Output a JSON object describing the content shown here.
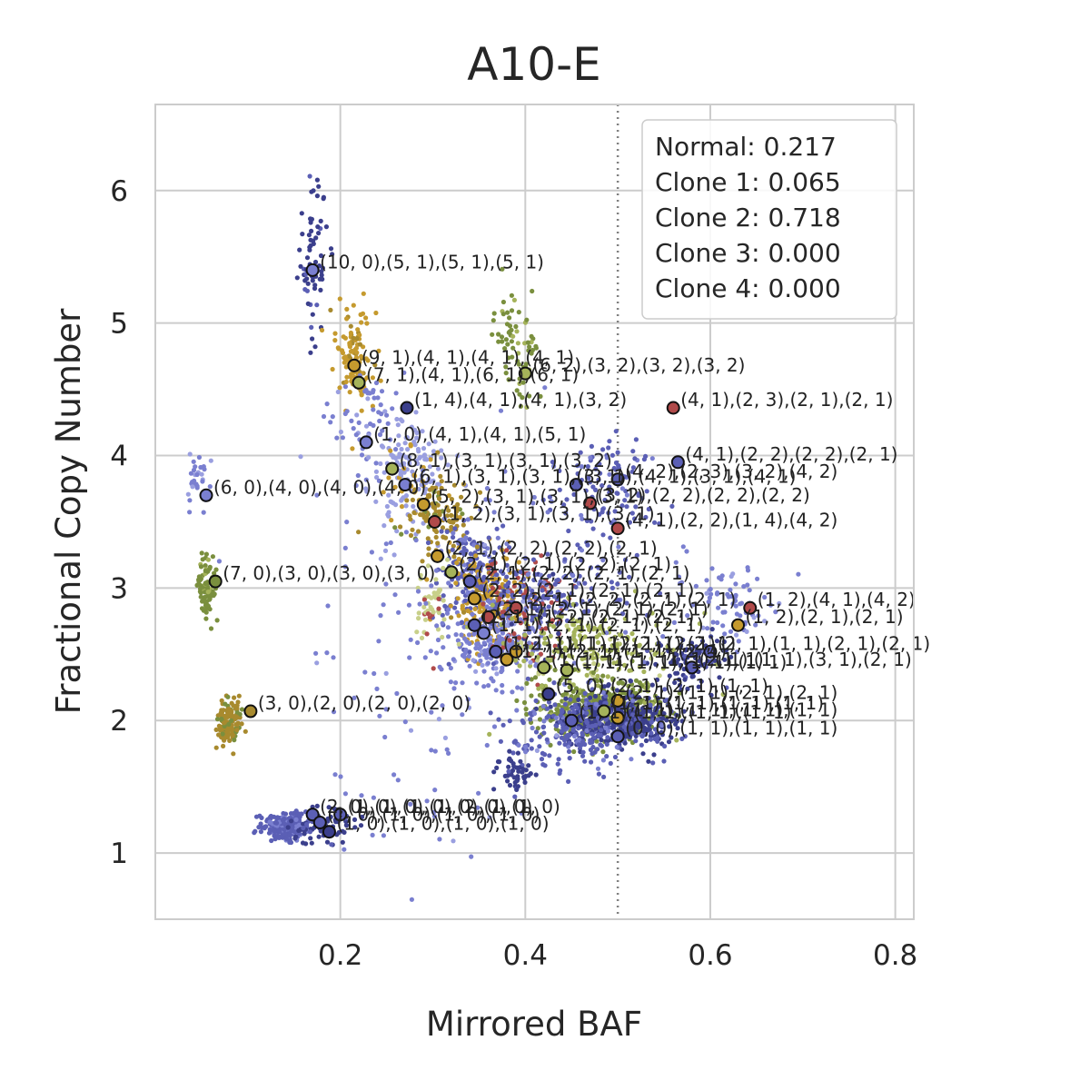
{
  "chart_data": {
    "type": "scatter",
    "title": "A10-E",
    "xlabel": "Mirrored BAF",
    "ylabel": "Fractional Copy Number",
    "xlim": [
      0.0,
      0.82
    ],
    "ylim": [
      0.5,
      6.65
    ],
    "x_ticks": [
      0.2,
      0.4,
      0.6,
      0.8
    ],
    "x_tick_labels": [
      "0.2",
      "0.4",
      "0.6",
      "0.8"
    ],
    "y_ticks": [
      1,
      2,
      3,
      4,
      5,
      6
    ],
    "y_tick_labels": [
      "1",
      "2",
      "3",
      "4",
      "5",
      "6"
    ],
    "grid": true,
    "reference_line": {
      "x": 0.5,
      "style": "dotted",
      "color": "#808080"
    },
    "legend": {
      "placement": "top-right",
      "entries": [
        "Normal: 0.217",
        "Clone 1: 0.065",
        "Clone 2: 0.718",
        "Clone 3: 0.000",
        "Clone 4: 0.000"
      ]
    },
    "palette": [
      "#3b3f8c",
      "#5b5fb5",
      "#7a7fd0",
      "#9a9fe0",
      "#c59a2e",
      "#a88a2e",
      "#7a8f3e",
      "#a5b35a",
      "#c8d08a",
      "#b04a4a"
    ],
    "clusters": [
      {
        "x": 0.17,
        "y": 5.5,
        "sx": 0.008,
        "sy": 0.3,
        "n": 70,
        "c": 0
      },
      {
        "x": 0.215,
        "y": 4.75,
        "sx": 0.01,
        "sy": 0.17,
        "n": 110,
        "c": 4
      },
      {
        "x": 0.225,
        "y": 4.3,
        "sx": 0.02,
        "sy": 0.2,
        "n": 60,
        "c": 2
      },
      {
        "x": 0.27,
        "y": 3.85,
        "sx": 0.02,
        "sy": 0.2,
        "n": 160,
        "c": 3
      },
      {
        "x": 0.3,
        "y": 3.55,
        "sx": 0.02,
        "sy": 0.15,
        "n": 120,
        "c": 5
      },
      {
        "x": 0.34,
        "y": 3.1,
        "sx": 0.02,
        "sy": 0.2,
        "n": 180,
        "c": 1
      },
      {
        "x": 0.36,
        "y": 2.9,
        "sx": 0.02,
        "sy": 0.18,
        "n": 180,
        "c": 4
      },
      {
        "x": 0.37,
        "y": 2.6,
        "sx": 0.025,
        "sy": 0.15,
        "n": 200,
        "c": 2
      },
      {
        "x": 0.4,
        "y": 2.8,
        "sx": 0.025,
        "sy": 0.2,
        "n": 120,
        "c": 9
      },
      {
        "x": 0.42,
        "y": 2.95,
        "sx": 0.04,
        "sy": 0.15,
        "n": 160,
        "c": 1
      },
      {
        "x": 0.47,
        "y": 2.55,
        "sx": 0.05,
        "sy": 0.15,
        "n": 180,
        "c": 7
      },
      {
        "x": 0.48,
        "y": 2.1,
        "sx": 0.035,
        "sy": 0.12,
        "n": 380,
        "c": 6
      },
      {
        "x": 0.5,
        "y": 2.0,
        "sx": 0.03,
        "sy": 0.1,
        "n": 400,
        "c": 0
      },
      {
        "x": 0.46,
        "y": 1.95,
        "sx": 0.04,
        "sy": 0.15,
        "n": 200,
        "c": 1
      },
      {
        "x": 0.39,
        "y": 1.6,
        "sx": 0.01,
        "sy": 0.06,
        "n": 50,
        "c": 0
      },
      {
        "x": 0.14,
        "y": 1.2,
        "sx": 0.012,
        "sy": 0.05,
        "n": 260,
        "c": 1
      },
      {
        "x": 0.18,
        "y": 1.2,
        "sx": 0.02,
        "sy": 0.06,
        "n": 80,
        "c": 0
      },
      {
        "x": 0.08,
        "y": 2.0,
        "sx": 0.006,
        "sy": 0.1,
        "n": 130,
        "c": 5
      },
      {
        "x": 0.055,
        "y": 3.0,
        "sx": 0.005,
        "sy": 0.14,
        "n": 90,
        "c": 6
      },
      {
        "x": 0.045,
        "y": 3.8,
        "sx": 0.006,
        "sy": 0.12,
        "n": 30,
        "c": 2
      },
      {
        "x": 0.39,
        "y": 4.8,
        "sx": 0.012,
        "sy": 0.2,
        "n": 70,
        "c": 6
      },
      {
        "x": 0.48,
        "y": 3.7,
        "sx": 0.03,
        "sy": 0.2,
        "n": 120,
        "c": 1
      },
      {
        "x": 0.58,
        "y": 2.45,
        "sx": 0.02,
        "sy": 0.1,
        "n": 90,
        "c": 0
      },
      {
        "x": 0.62,
        "y": 2.9,
        "sx": 0.03,
        "sy": 0.15,
        "n": 80,
        "c": 2
      },
      {
        "x": 0.3,
        "y": 2.9,
        "sx": 0.01,
        "sy": 0.15,
        "n": 50,
        "c": 8
      },
      {
        "x": 0.31,
        "y": 2.5,
        "sx": 0.08,
        "sy": 0.8,
        "n": 150,
        "c": 2
      }
    ],
    "labeled_points": [
      {
        "x": 0.17,
        "y": 5.4,
        "c": 2,
        "label": "(10, 0),(5, 1),(5, 1),(5, 1)"
      },
      {
        "x": 0.215,
        "y": 4.68,
        "c": 4,
        "label": "(9, 1),(4, 1),(4, 1),(4, 1)"
      },
      {
        "x": 0.22,
        "y": 4.55,
        "c": 7,
        "label": "(7, 1),(4, 1),(6, 1),(6, 1)"
      },
      {
        "x": 0.4,
        "y": 4.62,
        "c": 7,
        "label": "(6, 2),(3, 2),(3, 2),(3, 2)"
      },
      {
        "x": 0.272,
        "y": 4.36,
        "c": 0,
        "label": "(1, 4),(4, 1),(4, 1),(3, 2)"
      },
      {
        "x": 0.56,
        "y": 4.36,
        "c": 9,
        "label": "(4, 1),(2, 3),(2, 1),(2, 1)"
      },
      {
        "x": 0.228,
        "y": 4.1,
        "c": 2,
        "label": "(1, 0),(4, 1),(4, 1),(5, 1)"
      },
      {
        "x": 0.256,
        "y": 3.9,
        "c": 7,
        "label": "(8, 1),(3, 1),(3, 1),(3, 2)"
      },
      {
        "x": 0.565,
        "y": 3.95,
        "c": 1,
        "label": "(4, 1),(2, 2),(2, 2),(2, 1)"
      },
      {
        "x": 0.5,
        "y": 3.82,
        "c": 1,
        "label": "(4, 2),(2, 3),(3, 2),(4, 2)"
      },
      {
        "x": 0.27,
        "y": 3.78,
        "c": 2,
        "label": "(6, 1),(3, 1),(3, 1),(3, 1)"
      },
      {
        "x": 0.455,
        "y": 3.78,
        "c": 1,
        "label": "(3, 1),(4, 1),(3, 1),(4, 1)"
      },
      {
        "x": 0.055,
        "y": 3.7,
        "c": 2,
        "label": "(6, 0),(4, 0),(4, 0),(4, 0)"
      },
      {
        "x": 0.29,
        "y": 3.63,
        "c": 4,
        "label": "(5, 2),(3, 1),(3, 1),(3, 1)"
      },
      {
        "x": 0.47,
        "y": 3.64,
        "c": 9,
        "label": "(3, 2),(2, 2),(2, 2),(2, 2)"
      },
      {
        "x": 0.302,
        "y": 3.5,
        "c": 9,
        "label": "(1, 2),(3, 1),(3, 1),(3, 1)"
      },
      {
        "x": 0.5,
        "y": 3.45,
        "c": 9,
        "label": "(4, 1),(2, 2),(1, 4),(4, 2)"
      },
      {
        "x": 0.305,
        "y": 3.24,
        "c": 4,
        "label": "(2, 1),(2, 2),(2, 2),(2, 1)"
      },
      {
        "x": 0.32,
        "y": 3.12,
        "c": 7,
        "label": "(2, 1),(2, 1),(2, 2),(2, 1)"
      },
      {
        "x": 0.065,
        "y": 3.05,
        "c": 6,
        "label": "(7, 0),(3, 0),(3, 0),(3, 0)"
      },
      {
        "x": 0.34,
        "y": 3.05,
        "c": 1,
        "label": "(2, 1),(2, 2),(2, 1),(2, 1)"
      },
      {
        "x": 0.345,
        "y": 2.92,
        "c": 4,
        "label": "(2, 2),(2, 1),(2, 1),(2, 1)"
      },
      {
        "x": 0.39,
        "y": 2.85,
        "c": 9,
        "label": "(2, 1),(2, 2),(2, 1),(2, 1)"
      },
      {
        "x": 0.643,
        "y": 2.85,
        "c": 9,
        "label": "(1, 2),(4, 1),(4, 2)"
      },
      {
        "x": 0.36,
        "y": 2.78,
        "c": 9,
        "label": "(2, 1),(2, 1),(2, 1),(2, 1)"
      },
      {
        "x": 0.63,
        "y": 2.72,
        "c": 4,
        "label": "(1, 2),(2, 1),(2, 1)"
      },
      {
        "x": 0.345,
        "y": 2.72,
        "c": 1,
        "label": "(2, 1),(1, 2),(2, 1),(2, 1)"
      },
      {
        "x": 0.355,
        "y": 2.66,
        "c": 2,
        "label": "(1, 1),(2, 1),(2, 1),(2, 1)"
      },
      {
        "x": 0.368,
        "y": 2.52,
        "c": 1,
        "label": "(1, 1),(1, 1),(2, 1),(2, 1)"
      },
      {
        "x": 0.39,
        "y": 2.52,
        "c": 4,
        "label": "(2, 1),(1, 1),(2, 1),(2, 1)"
      },
      {
        "x": 0.6,
        "y": 2.52,
        "c": 1,
        "label": "(2, 1),(1, 1),(2, 1),(2, 1)"
      },
      {
        "x": 0.38,
        "y": 2.46,
        "c": 4,
        "label": "(1, 1),(2, 1),(1, 1),(2, 1)"
      },
      {
        "x": 0.58,
        "y": 2.4,
        "c": 1,
        "label": "(2, 1),(1, 1),(3, 1),(2, 1)"
      },
      {
        "x": 0.42,
        "y": 2.4,
        "c": 7,
        "label": "(1, 1),(1, 1),(1, 1),(1, 1)"
      },
      {
        "x": 0.445,
        "y": 2.38,
        "c": 7,
        "label": "(1, 1),(1, 1),(1, 1),(1, 1)"
      },
      {
        "x": 0.425,
        "y": 2.2,
        "c": 0,
        "label": "(5, 0),(2, 1),(2, 1),(1, 1)"
      },
      {
        "x": 0.5,
        "y": 2.15,
        "c": 4,
        "label": "(2, 1),(1, 1),(2, 1),(2, 1)"
      },
      {
        "x": 0.485,
        "y": 2.07,
        "c": 7,
        "label": "(1, 1),(1, 1),(1, 1),(1, 1)"
      },
      {
        "x": 0.103,
        "y": 2.07,
        "c": 5,
        "label": "(3, 0),(2, 0),(2, 0),(2, 0)"
      },
      {
        "x": 0.5,
        "y": 2.02,
        "c": 4,
        "label": "(1, 1),(1, 1),(1, 1),(1, 1)"
      },
      {
        "x": 0.45,
        "y": 2.0,
        "c": 1,
        "label": "(1, 1),(1, 1),(1, 1),(1, 1)"
      },
      {
        "x": 0.5,
        "y": 1.88,
        "c": 1,
        "label": "(0, 0),(1, 1),(1, 1),(1, 1)"
      },
      {
        "x": 0.17,
        "y": 1.29,
        "c": 1,
        "label": "(2, 0),(1, 0),(1, 0),(1, 0)"
      },
      {
        "x": 0.2,
        "y": 1.29,
        "c": 1,
        "label": "(1, 0),(1, 0),(2, 0),(1, 0)"
      },
      {
        "x": 0.178,
        "y": 1.23,
        "c": 1,
        "label": "(1, 0),(1, 0),(1, 0),(1, 0)"
      },
      {
        "x": 0.188,
        "y": 1.16,
        "c": 0,
        "label": "(1, 0),(1, 0),(1, 0),(1, 0)"
      }
    ]
  }
}
